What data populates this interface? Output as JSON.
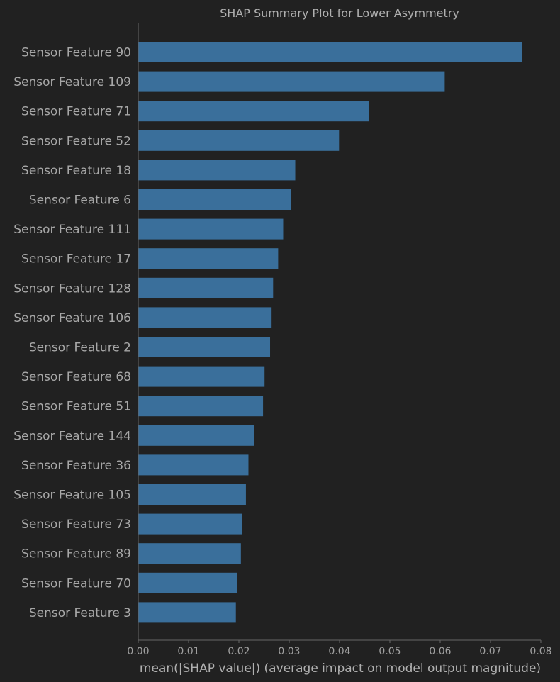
{
  "colors": {
    "background": "#212121",
    "bar": "#3a6f9b",
    "axis": "#666666",
    "text": "#a8a8a8"
  },
  "chart_data": {
    "type": "bar",
    "orientation": "horizontal",
    "title": "SHAP Summary Plot for Lower Asymmetry",
    "xlabel": "mean(|SHAP value|) (average impact on model output magnitude)",
    "ylabel": "",
    "xlim": [
      0,
      0.08
    ],
    "xticks": [
      "0.00",
      "0.01",
      "0.02",
      "0.03",
      "0.04",
      "0.05",
      "0.06",
      "0.07",
      "0.08"
    ],
    "grid": false,
    "categories": [
      "Sensor Feature 90",
      "Sensor Feature 109",
      "Sensor Feature 71",
      "Sensor Feature 52",
      "Sensor Feature 18",
      "Sensor Feature 6",
      "Sensor Feature 111",
      "Sensor Feature 17",
      "Sensor Feature 128",
      "Sensor Feature 106",
      "Sensor Feature 2",
      "Sensor Feature 68",
      "Sensor Feature 51",
      "Sensor Feature 144",
      "Sensor Feature 36",
      "Sensor Feature 105",
      "Sensor Feature 73",
      "Sensor Feature 89",
      "Sensor Feature 70",
      "Sensor Feature 3"
    ],
    "values": [
      0.0763,
      0.0609,
      0.0458,
      0.0399,
      0.0312,
      0.0303,
      0.0288,
      0.0278,
      0.0268,
      0.0265,
      0.0262,
      0.0251,
      0.0248,
      0.023,
      0.0219,
      0.0214,
      0.0206,
      0.0204,
      0.0197,
      0.0194
    ]
  }
}
